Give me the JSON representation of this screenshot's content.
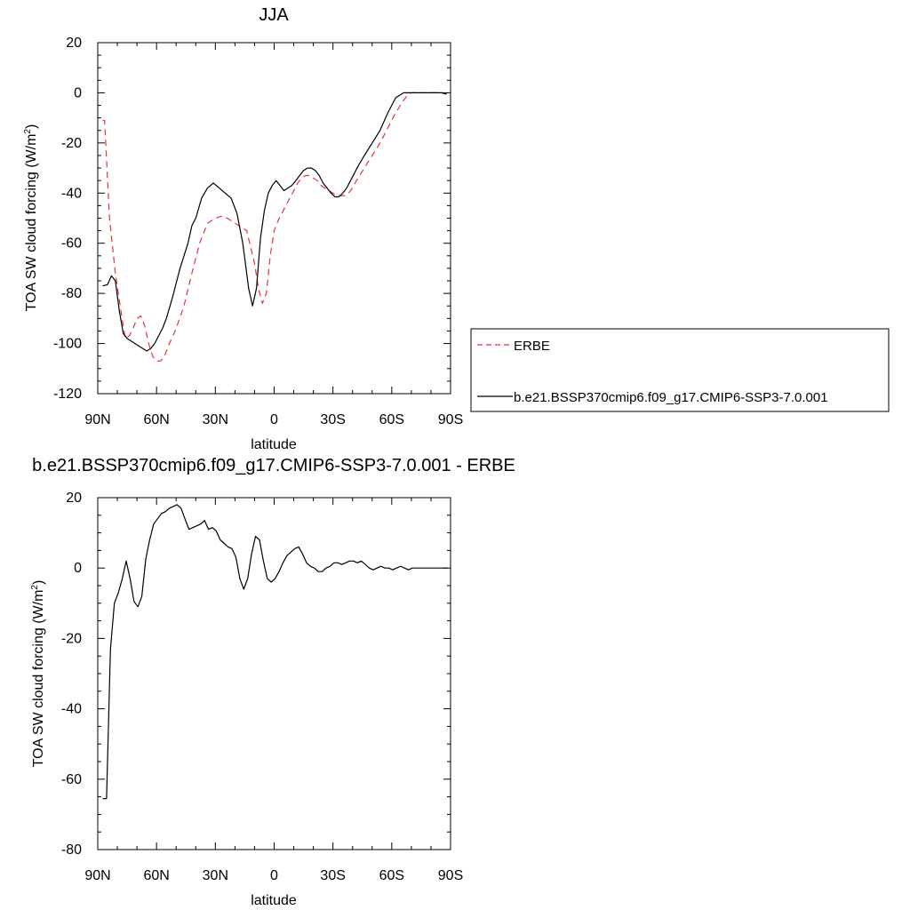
{
  "chart_data": [
    {
      "type": "line",
      "title": "JJA",
      "xlabel": "latitude",
      "ylabel_main": "TOA SW cloud forcing (W/m",
      "ylabel_sup": "2",
      "ylabel_tail": ")",
      "xlim": [
        90,
        -90
      ],
      "ylim": [
        -120,
        20
      ],
      "x_ticks": [
        90,
        60,
        30,
        0,
        -30,
        -60,
        -90
      ],
      "x_tick_labels": [
        "90N",
        "60N",
        "30N",
        "0",
        "30S",
        "60S",
        "90S"
      ],
      "y_ticks": [
        20,
        0,
        -20,
        -40,
        -60,
        -80,
        -100,
        -120
      ],
      "y_tick_labels": [
        "20",
        "0",
        "-20",
        "-40",
        "-60",
        "-80",
        "-100",
        "-120"
      ],
      "grid": false,
      "legend_position": "right",
      "series": [
        {
          "name": "ERBE",
          "color": "#e8333a",
          "dash": true,
          "x": [
            87.5,
            86.5,
            84,
            81,
            78,
            76,
            74,
            72,
            70,
            68,
            66,
            64,
            62,
            60,
            58,
            56,
            54,
            50,
            46,
            42,
            38,
            34,
            30,
            26,
            22,
            18,
            14,
            10,
            8,
            6,
            4,
            2,
            0,
            -2,
            -4,
            -6,
            -8,
            -10,
            -12,
            -14,
            -16,
            -18,
            -20,
            -22,
            -24,
            -26,
            -28,
            -30,
            -32,
            -34,
            -36,
            -38,
            -40,
            -42,
            -46,
            -50,
            -54,
            -58,
            -62,
            -66,
            -68,
            -70,
            -72,
            -74,
            -76,
            -80,
            -84,
            -88
          ],
          "y": [
            -11,
            -11,
            -50,
            -72,
            -88,
            -98,
            -97,
            -94,
            -90,
            -89,
            -93,
            -100,
            -105,
            -107,
            -107,
            -105,
            -101,
            -94,
            -85,
            -72,
            -60,
            -52,
            -50,
            -49,
            -51,
            -53,
            -55,
            -68,
            -78,
            -84,
            -80,
            -65,
            -55,
            -51,
            -48,
            -45,
            -42,
            -39,
            -36,
            -34,
            -33,
            -33,
            -34,
            -35,
            -37,
            -38,
            -39,
            -40,
            -41,
            -41,
            -41,
            -40,
            -38,
            -35,
            -30,
            -25,
            -20,
            -14,
            -8,
            -3,
            -1,
            0,
            0,
            0,
            0,
            0,
            0,
            -0.5
          ]
        },
        {
          "name": "b.e21.BSSP370cmip6.f09_g17.CMIP6-SSP3-7.0.001",
          "color": "#000000",
          "dash": false,
          "x": [
            87.5,
            85,
            83,
            81,
            79,
            77,
            75,
            73,
            71,
            69,
            67,
            65,
            63,
            61,
            59,
            57,
            55,
            52,
            48,
            44,
            42,
            40,
            37,
            34,
            31,
            28,
            25,
            22,
            19,
            16,
            13,
            11,
            9,
            7,
            5,
            3,
            1,
            -1,
            -3,
            -5,
            -7,
            -9,
            -11,
            -13,
            -15,
            -17,
            -19,
            -21,
            -23,
            -25,
            -27,
            -29,
            -31,
            -33,
            -35,
            -37,
            -39,
            -41,
            -43,
            -46,
            -50,
            -54,
            -58,
            -62,
            -66,
            -68,
            -70,
            -74,
            -78,
            -82,
            -86,
            -88
          ],
          "y": [
            -77,
            -76.5,
            -73,
            -75,
            -87,
            -96,
            -98,
            -99,
            -100,
            -101,
            -102,
            -103,
            -102,
            -100,
            -97,
            -94,
            -90,
            -82,
            -70,
            -60,
            -53,
            -50,
            -42,
            -38,
            -36,
            -38,
            -40,
            -42,
            -48,
            -60,
            -78,
            -85,
            -78,
            -58,
            -47,
            -40,
            -37,
            -35,
            -37,
            -39,
            -38,
            -37,
            -35,
            -33,
            -31,
            -30,
            -30,
            -31,
            -33,
            -36,
            -38,
            -40,
            -41.5,
            -41.5,
            -40,
            -38,
            -35,
            -32,
            -29,
            -25,
            -20,
            -15,
            -8,
            -2,
            0,
            0,
            0,
            0,
            0,
            0,
            0,
            -0.5
          ]
        }
      ]
    },
    {
      "type": "line",
      "title": "b.e21.BSSP370cmip6.f09_g17.CMIP6-SSP3-7.0.001 - ERBE",
      "xlabel": "latitude",
      "ylabel_main": "TOA SW cloud forcing (W/m",
      "ylabel_sup": "2",
      "ylabel_tail": ")",
      "xlim": [
        90,
        -90
      ],
      "ylim": [
        -80,
        20
      ],
      "x_ticks": [
        90,
        60,
        30,
        0,
        -30,
        -60,
        -90
      ],
      "x_tick_labels": [
        "90N",
        "60N",
        "30N",
        "0",
        "30S",
        "60S",
        "90S"
      ],
      "y_ticks": [
        20,
        0,
        -20,
        -40,
        -60,
        -80
      ],
      "y_tick_labels": [
        "20",
        "0",
        "-20",
        "-40",
        "-60",
        "-80"
      ],
      "grid": false,
      "series": [
        {
          "color": "#000000",
          "dash": false,
          "x": [
            87.5,
            85.5,
            83.5,
            81.5,
            79.5,
            77.5,
            75.5,
            73.5,
            71.5,
            69.5,
            67.5,
            65.5,
            63.5,
            61.5,
            59.5,
            57.5,
            55.5,
            53.5,
            51.5,
            49.5,
            47.5,
            45.5,
            43.5,
            41.5,
            39.5,
            37.5,
            35.5,
            33.5,
            31.5,
            29.5,
            27.5,
            25.5,
            23.5,
            21.5,
            19.5,
            17.5,
            15.5,
            13.5,
            11.5,
            9.5,
            7.5,
            5.5,
            3.5,
            1.5,
            -0.5,
            -2.5,
            -4.5,
            -6.5,
            -8.5,
            -10.5,
            -12.5,
            -14.5,
            -16.5,
            -18.5,
            -20.5,
            -22.5,
            -24.5,
            -26.5,
            -28.5,
            -30.5,
            -32.5,
            -34.5,
            -36.5,
            -38.5,
            -40.5,
            -42.5,
            -44.5,
            -46.5,
            -48.5,
            -50.5,
            -52.5,
            -54.5,
            -56.5,
            -58.5,
            -60.5,
            -62.5,
            -64.5,
            -66.5,
            -68.5,
            -70.5,
            -72.5,
            -74.5,
            -76.5,
            -78.5,
            -80.5,
            -82.5,
            -84.5,
            -86.5,
            -88.5
          ],
          "y": [
            -65.5,
            -65.5,
            -23,
            -10,
            -7,
            -3,
            2,
            -3,
            -9.5,
            -11,
            -8,
            2.5,
            8,
            12.5,
            14,
            15.5,
            16,
            17,
            17.5,
            18,
            17,
            14,
            11,
            11.5,
            12,
            12.5,
            13.5,
            11,
            11.5,
            10.5,
            8,
            7,
            6,
            5.5,
            3,
            -3,
            -6,
            -3,
            4,
            9,
            8,
            2,
            -3,
            -4,
            -3,
            -1,
            1.5,
            3.5,
            4.5,
            5.5,
            6,
            4,
            1.5,
            0.5,
            0,
            -1,
            -1,
            0,
            0.5,
            1.5,
            1.5,
            1,
            1.5,
            2,
            2,
            1.5,
            2,
            1,
            0,
            -0.5,
            0,
            0.5,
            0,
            0,
            -0.5,
            0,
            0.5,
            0,
            -0.5,
            0,
            0,
            0,
            0,
            0,
            0,
            0,
            0,
            0,
            0
          ]
        }
      ]
    }
  ]
}
